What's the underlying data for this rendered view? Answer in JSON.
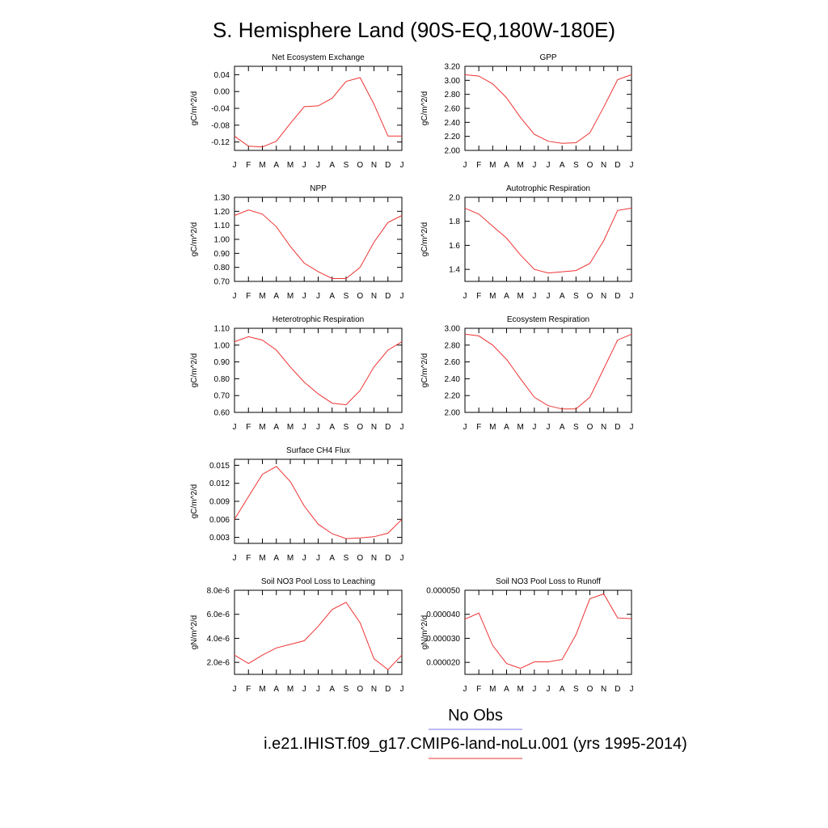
{
  "page_title": "S. Hemisphere Land (90S-EQ,180W-180E)",
  "legend": {
    "obs_label": "No Obs",
    "obs_color": "#7777ee",
    "model_label": "i.e21.IHIST.f09_g17.CMIP6-land-noLu.001 (yrs 1995-2014)",
    "model_color": "#ee3333"
  },
  "chart_data": [
    {
      "type": "line",
      "title": "Net Ecosystem Exchange",
      "ylabel": "gC/m^2/d",
      "x": [
        "J",
        "F",
        "M",
        "A",
        "M",
        "J",
        "J",
        "A",
        "S",
        "O",
        "N",
        "D",
        "J"
      ],
      "ylim": [
        -0.14,
        0.06
      ],
      "yticks": [
        "0.04",
        "0.00",
        "-0.04",
        "-0.08",
        "-0.12"
      ],
      "ytick_values": [
        0.04,
        0.0,
        -0.04,
        -0.08,
        -0.12
      ],
      "series": [
        {
          "color": "#ee3333",
          "values": [
            -0.106,
            -0.13,
            -0.132,
            -0.118,
            -0.076,
            -0.036,
            -0.034,
            -0.016,
            0.024,
            0.033,
            -0.03,
            -0.106,
            -0.106
          ]
        }
      ]
    },
    {
      "type": "line",
      "title": "GPP",
      "ylabel": "gC/m^2/d",
      "x": [
        "J",
        "F",
        "M",
        "A",
        "M",
        "J",
        "J",
        "A",
        "S",
        "O",
        "N",
        "D",
        "J"
      ],
      "ylim": [
        2.0,
        3.2
      ],
      "yticks": [
        "3.20",
        "3.00",
        "2.80",
        "2.60",
        "2.40",
        "2.20",
        "2.00"
      ],
      "ytick_values": [
        3.2,
        3.0,
        2.8,
        2.6,
        2.4,
        2.2,
        2.0
      ],
      "series": [
        {
          "color": "#ee3333",
          "values": [
            3.08,
            3.06,
            2.95,
            2.75,
            2.47,
            2.23,
            2.13,
            2.1,
            2.11,
            2.25,
            2.62,
            3.01,
            3.08
          ]
        }
      ]
    },
    {
      "type": "line",
      "title": "NPP",
      "ylabel": "gC/m^2/d",
      "x": [
        "J",
        "F",
        "M",
        "A",
        "M",
        "J",
        "J",
        "A",
        "S",
        "O",
        "N",
        "D",
        "J"
      ],
      "ylim": [
        0.7,
        1.3
      ],
      "yticks": [
        "1.30",
        "1.20",
        "1.10",
        "1.00",
        "0.90",
        "0.80",
        "0.70"
      ],
      "ytick_values": [
        1.3,
        1.2,
        1.1,
        1.0,
        0.9,
        0.8,
        0.7
      ],
      "series": [
        {
          "color": "#ee3333",
          "values": [
            1.17,
            1.21,
            1.18,
            1.09,
            0.95,
            0.83,
            0.77,
            0.72,
            0.72,
            0.8,
            0.98,
            1.12,
            1.17
          ]
        }
      ]
    },
    {
      "type": "line",
      "title": "Autotrophic Respiration",
      "ylabel": "gC/m^2/d",
      "x": [
        "J",
        "F",
        "M",
        "A",
        "M",
        "J",
        "J",
        "A",
        "S",
        "O",
        "N",
        "D",
        "J"
      ],
      "ylim": [
        1.3,
        2.0
      ],
      "yticks": [
        "2.0",
        "1.8",
        "1.6",
        "1.4"
      ],
      "ytick_values": [
        2.0,
        1.8,
        1.6,
        1.4
      ],
      "series": [
        {
          "color": "#ee3333",
          "values": [
            1.91,
            1.86,
            1.76,
            1.66,
            1.52,
            1.4,
            1.37,
            1.38,
            1.39,
            1.45,
            1.64,
            1.89,
            1.91
          ]
        }
      ]
    },
    {
      "type": "line",
      "title": "Heterotrophic Respiration",
      "ylabel": "gC/m^2/d",
      "x": [
        "J",
        "F",
        "M",
        "A",
        "M",
        "J",
        "J",
        "A",
        "S",
        "O",
        "N",
        "D",
        "J"
      ],
      "ylim": [
        0.6,
        1.1
      ],
      "yticks": [
        "1.10",
        "1.00",
        "0.90",
        "0.80",
        "0.70",
        "0.60"
      ],
      "ytick_values": [
        1.1,
        1.0,
        0.9,
        0.8,
        0.7,
        0.6
      ],
      "series": [
        {
          "color": "#ee3333",
          "values": [
            1.02,
            1.05,
            1.03,
            0.97,
            0.87,
            0.78,
            0.71,
            0.655,
            0.645,
            0.73,
            0.87,
            0.97,
            1.02
          ]
        }
      ]
    },
    {
      "type": "line",
      "title": "Ecosystem Respiration",
      "ylabel": "gC/m^2/d",
      "x": [
        "J",
        "F",
        "M",
        "A",
        "M",
        "J",
        "J",
        "A",
        "S",
        "O",
        "N",
        "D",
        "J"
      ],
      "ylim": [
        2.0,
        3.0
      ],
      "yticks": [
        "3.00",
        "2.80",
        "2.60",
        "2.40",
        "2.20",
        "2.00"
      ],
      "ytick_values": [
        3.0,
        2.8,
        2.6,
        2.4,
        2.2,
        2.0
      ],
      "series": [
        {
          "color": "#ee3333",
          "values": [
            2.93,
            2.91,
            2.8,
            2.63,
            2.4,
            2.18,
            2.08,
            2.04,
            2.04,
            2.18,
            2.52,
            2.86,
            2.93
          ]
        }
      ]
    },
    {
      "type": "line",
      "title": "Surface CH4 Flux",
      "ylabel": "gC/m^2/d",
      "x": [
        "J",
        "F",
        "M",
        "A",
        "M",
        "J",
        "J",
        "A",
        "S",
        "O",
        "N",
        "D",
        "J"
      ],
      "ylim": [
        0.002,
        0.016
      ],
      "yticks": [
        "0.015",
        "0.012",
        "0.009",
        "0.006",
        "0.003"
      ],
      "ytick_values": [
        0.015,
        0.012,
        0.009,
        0.006,
        0.003
      ],
      "series": [
        {
          "color": "#ee3333",
          "values": [
            0.006,
            0.0098,
            0.0135,
            0.0148,
            0.0123,
            0.0082,
            0.0052,
            0.0036,
            0.0028,
            0.0029,
            0.0031,
            0.0037,
            0.006
          ]
        }
      ]
    },
    {
      "type": "line",
      "title": "Soil NO3 Pool Loss to Leaching",
      "ylabel": "gN/m^2/d",
      "x": [
        "J",
        "F",
        "M",
        "A",
        "M",
        "J",
        "J",
        "A",
        "S",
        "O",
        "N",
        "D",
        "J"
      ],
      "ylim": [
        1e-06,
        8e-06
      ],
      "yticks": [
        "8.0e-6",
        "6.0e-6",
        "4.0e-6",
        "2.0e-6"
      ],
      "ytick_values": [
        8e-06,
        6e-06,
        4e-06,
        2e-06
      ],
      "series": [
        {
          "color": "#ee3333",
          "values": [
            2.6e-06,
            1.9e-06,
            2.6e-06,
            3.2e-06,
            3.5e-06,
            3.8e-06,
            5e-06,
            6.4e-06,
            7e-06,
            5.3e-06,
            2.3e-06,
            1.4e-06,
            2.6e-06
          ]
        }
      ]
    },
    {
      "type": "line",
      "title": "Soil NO3 Pool Loss to Runoff",
      "ylabel": "gN/m^2/d",
      "x": [
        "J",
        "F",
        "M",
        "A",
        "M",
        "J",
        "J",
        "A",
        "S",
        "O",
        "N",
        "D",
        "J"
      ],
      "ylim": [
        1.5e-05,
        5e-05
      ],
      "yticks": [
        "0.000050",
        "0.000040",
        "0.000030",
        "0.000020"
      ],
      "ytick_values": [
        5e-05,
        4e-05,
        3e-05,
        2e-05
      ],
      "series": [
        {
          "color": "#ee3333",
          "values": [
            3.8e-05,
            4.05e-05,
            2.7e-05,
            1.95e-05,
            1.75e-05,
            2.02e-05,
            2.02e-05,
            2.12e-05,
            3.15e-05,
            4.65e-05,
            4.85e-05,
            3.85e-05,
            3.82e-05
          ]
        }
      ]
    }
  ]
}
